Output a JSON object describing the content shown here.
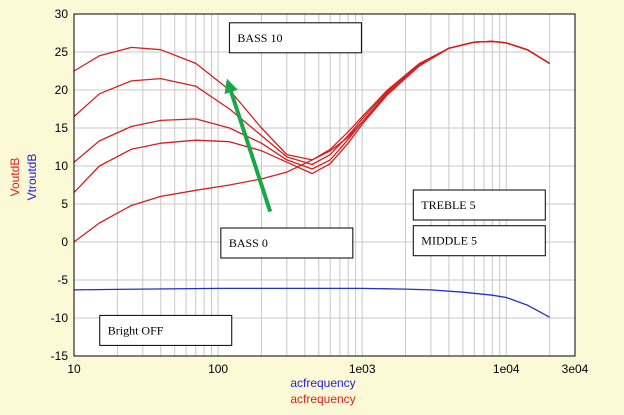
{
  "chart_data": {
    "type": "line",
    "x_scale": "log",
    "xlim": [
      10,
      30000
    ],
    "ylim": [
      -15,
      30
    ],
    "x_ticks": [
      {
        "value": 10,
        "label": "10"
      },
      {
        "value": 100,
        "label": "100"
      },
      {
        "value": 1000,
        "label": "1e03"
      },
      {
        "value": 10000,
        "label": "1e04"
      },
      {
        "value": 30000,
        "label": "3e04"
      }
    ],
    "y_ticks": [
      {
        "value": 30,
        "label": "30"
      },
      {
        "value": 25,
        "label": "25"
      },
      {
        "value": 20,
        "label": "20"
      },
      {
        "value": 15,
        "label": "15"
      },
      {
        "value": 10,
        "label": "10"
      },
      {
        "value": 5,
        "label": "5"
      },
      {
        "value": 0,
        "label": "0"
      },
      {
        "value": -5,
        "label": "-5"
      },
      {
        "value": -10,
        "label": "-10"
      },
      {
        "value": -15,
        "label": "-15"
      }
    ],
    "ylabels": [
      {
        "text": "VoutdB",
        "color": "#e02020"
      },
      {
        "text": "VtroutdB",
        "color": "#2020e0"
      }
    ],
    "xlabels": [
      {
        "text": "acfrequency",
        "color": "#2020e0"
      },
      {
        "text": "acfrequency",
        "color": "#e02020"
      }
    ],
    "grid": true,
    "colors": {
      "background": "#fbf9d6",
      "plot_bg": "#ffffff",
      "red": "#d42020",
      "blue": "#2030d0",
      "arrow": "#18a84a",
      "grid": "#c8c8c8"
    },
    "series": [
      {
        "color": "#d42020",
        "x": [
          10,
          15,
          25,
          40,
          70,
          120,
          200,
          300,
          450,
          600,
          800,
          1000,
          1500,
          2500,
          4000,
          6000,
          8000,
          10000,
          14000,
          20000
        ],
        "y": [
          22.5,
          24.5,
          25.6,
          25.3,
          23.5,
          20,
          15,
          11.5,
          10.8,
          12.2,
          14.5,
          16.5,
          20,
          23.5,
          25.5,
          26.3,
          26.4,
          26.2,
          25.3,
          23.5
        ]
      },
      {
        "color": "#d42020",
        "x": [
          10,
          15,
          25,
          40,
          70,
          120,
          200,
          300,
          450,
          600,
          800,
          1000,
          1500,
          2500,
          4000,
          6000,
          8000,
          10000,
          14000,
          20000
        ],
        "y": [
          16.5,
          19.5,
          21.2,
          21.5,
          20.5,
          17.5,
          14,
          11.2,
          10.2,
          11.5,
          14,
          16.2,
          19.8,
          23.4,
          25.5,
          26.3,
          26.4,
          26.2,
          25.3,
          23.5
        ]
      },
      {
        "color": "#d42020",
        "x": [
          10,
          15,
          25,
          40,
          70,
          120,
          200,
          300,
          450,
          600,
          800,
          1000,
          1500,
          2500,
          4000,
          6000,
          8000,
          10000,
          14000,
          20000
        ],
        "y": [
          10.5,
          13.3,
          15.2,
          16,
          16.2,
          15,
          13,
          10.8,
          9.6,
          10.8,
          13.5,
          15.8,
          19.6,
          23.3,
          25.5,
          26.3,
          26.4,
          26.2,
          25.3,
          23.5
        ]
      },
      {
        "color": "#d42020",
        "x": [
          10,
          15,
          25,
          40,
          70,
          120,
          200,
          300,
          450,
          600,
          800,
          1000,
          1500,
          2500,
          4000,
          6000,
          8000,
          10000,
          14000,
          20000
        ],
        "y": [
          6.5,
          10,
          12.2,
          13,
          13.4,
          13.2,
          12,
          10.5,
          9,
          10.3,
          13,
          15.5,
          19.4,
          23.2,
          25.5,
          26.3,
          26.4,
          26.2,
          25.3,
          23.5
        ]
      },
      {
        "color": "#d42020",
        "x": [
          10,
          15,
          25,
          40,
          70,
          120,
          200,
          300,
          450,
          600,
          800,
          1000,
          1500,
          2500,
          4000,
          6000,
          8000,
          10000,
          14000,
          20000
        ],
        "y": [
          0,
          2.5,
          4.8,
          6,
          6.8,
          7.5,
          8.3,
          9.2,
          10.8,
          12,
          13.8,
          15.8,
          19.5,
          23.2,
          25.5,
          26.3,
          26.4,
          26.2,
          25.3,
          23.5
        ]
      },
      {
        "color": "#2030d0",
        "x": [
          10,
          30,
          100,
          300,
          1000,
          2000,
          3000,
          5000,
          8000,
          10000,
          14000,
          20000
        ],
        "y": [
          -6.3,
          -6.2,
          -6.1,
          -6.1,
          -6.1,
          -6.2,
          -6.3,
          -6.6,
          -7,
          -7.3,
          -8.3,
          -9.9
        ]
      }
    ],
    "annotations": [
      {
        "text": "BASS 10",
        "x": 220,
        "y": 27
      },
      {
        "text": "BASS 0",
        "x": 300,
        "y": 0
      },
      {
        "text": "TREBLE 5",
        "x": 8000,
        "y": 5
      },
      {
        "text": "MIDDLE 5",
        "x": 8000,
        "y": 0.3
      },
      {
        "text": "Bright OFF",
        "x": 30,
        "y": -11.5
      }
    ],
    "arrow": {
      "from": [
        230,
        4
      ],
      "to": [
        115,
        21.5
      ]
    }
  }
}
